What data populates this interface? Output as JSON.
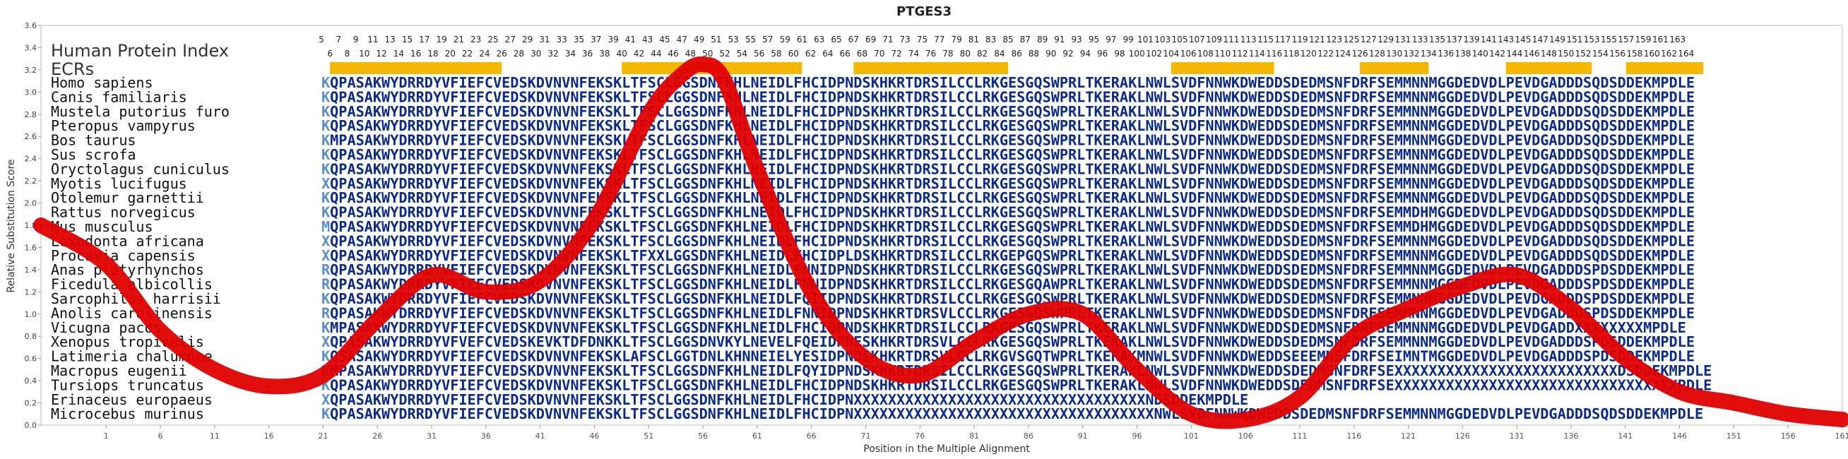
{
  "chart_data": {
    "type": "line",
    "title": "PTGES3",
    "xlabel": "Position in the Multiple Alignment",
    "ylabel": "Relative Substitution Score",
    "ylim": [
      0.0,
      3.6
    ],
    "yticks": [
      "0.0",
      "0.2",
      "0.4",
      "0.6",
      "0.8",
      "1.0",
      "1.2",
      "1.4",
      "1.6",
      "1.8",
      "2.0",
      "2.2",
      "2.4",
      "2.6",
      "2.8",
      "3.0",
      "3.2",
      "3.4",
      "3.6"
    ],
    "xlim": [
      -5,
      161
    ],
    "xticks": [
      "1",
      "6",
      "11",
      "16",
      "21",
      "26",
      "31",
      "36",
      "41",
      "46",
      "51",
      "56",
      "61",
      "66",
      "71",
      "76",
      "81",
      "86",
      "91",
      "96",
      "101",
      "106",
      "111",
      "116",
      "121",
      "126",
      "131",
      "136",
      "141",
      "146",
      "151",
      "156",
      "161"
    ],
    "index_label": "Human Protein Index",
    "ecr_label": "ECRs",
    "position_labels_odd": [
      "5",
      "7",
      "9",
      "11",
      "13",
      "15",
      "17",
      "19",
      "21",
      "23",
      "25",
      "27",
      "29",
      "31",
      "33",
      "35",
      "37",
      "39",
      "41",
      "43",
      "45",
      "47",
      "49",
      "51",
      "53",
      "55",
      "57",
      "59",
      "61",
      "63",
      "65",
      "67",
      "69",
      "71",
      "73",
      "75",
      "77",
      "79",
      "81",
      "83",
      "85",
      "87",
      "89",
      "91",
      "93",
      "95",
      "97",
      "99",
      "101",
      "103",
      "105",
      "107",
      "109",
      "111",
      "113",
      "115",
      "117",
      "119",
      "121",
      "123",
      "125",
      "127",
      "129",
      "131",
      "133",
      "135",
      "137",
      "139",
      "141",
      "143",
      "145",
      "147",
      "149",
      "151",
      "153",
      "155",
      "157",
      "159",
      "161",
      "163"
    ],
    "position_labels_even": [
      "6",
      "8",
      "10",
      "12",
      "14",
      "16",
      "18",
      "20",
      "22",
      "24",
      "26",
      "28",
      "30",
      "32",
      "34",
      "36",
      "38",
      "40",
      "42",
      "44",
      "46",
      "48",
      "50",
      "52",
      "54",
      "56",
      "58",
      "60",
      "62",
      "64",
      "66",
      "68",
      "70",
      "72",
      "74",
      "76",
      "78",
      "80",
      "82",
      "84",
      "86",
      "88",
      "90",
      "92",
      "94",
      "96",
      "98",
      "100",
      "102",
      "104",
      "106",
      "108",
      "110",
      "112",
      "114",
      "116",
      "118",
      "120",
      "122",
      "124",
      "126",
      "128",
      "130",
      "132",
      "134",
      "136",
      "138",
      "140",
      "142",
      "144",
      "146",
      "148",
      "150",
      "152",
      "154",
      "156",
      "158",
      "160",
      "162",
      "164"
    ],
    "ecr_regions": [
      [
        1,
        20
      ],
      [
        35,
        55
      ],
      [
        62,
        79
      ],
      [
        99,
        110
      ],
      [
        121,
        128
      ],
      [
        138,
        147
      ],
      [
        152,
        160
      ]
    ],
    "ecr_color": "#f5b800",
    "line_color": "#e00000",
    "species": [
      "Homo sapiens",
      "Canis familiaris",
      "Mustela putorius furo",
      "Pteropus vampyrus",
      "Bos taurus",
      "Sus scrofa",
      "Oryctolagus cuniculus",
      "Myotis lucifugus",
      "Otolemur garnettii",
      "Rattus norvegicus",
      "Mus musculus",
      "Loxodonta africana",
      "Procavia capensis",
      "Anas platyrhynchos",
      "Ficedula albicollis",
      "Sarcophilus harrisii",
      "Anolis carolinensis",
      "Vicugna pacos",
      "Xenopus tropicalis",
      "Latimeria chalumnae",
      "Macropus eugenii",
      "Tursiops truncatus",
      "Erinaceus europaeus",
      "Microcebus murinus"
    ],
    "sequences": [
      "KQPASAKWYDRRDYVFIEFCVEDSKDVNVNFEKSKLTFSCLGGSDNFKHLNEIDLFHCIDPNDSKHKRTDRSILCCLRKGESGQSWPRLTKERAKLNWLSVDFNNWKDWEDDSDEDMSNFDRFSEMMNNMGGDEDVDLPEVDGADDDSQDSDDEKMPDLE",
      "KQPASAKWYDRRDYVFIEFCVEDSKDVNVNFEKSKLTFSCLGGSDNFKHLNEIDLFHCIDPNDSKHKRTDRSILCCLRKGESGQSWPRLTKERAKLNWLSVDFNNWKDWEDDSDEDMSNFDRFSEMMNNMGGDEDVDLPEVDGADDDSQDSDDEKMPDLE",
      "KQPASAKWYDRRDYVFIEFCVEDSKDVNVNFEKSKLTFSCLGGSDNFKHLNEIDLFHCIDPNDSKHKRTDRSILCCLRKGESGQSWPRLTKERAKLNWLSVDFNNWKDWEDDSDEDMSNFDRFSEMMNNMGGDEDVDLPEVDGADDDSQDSDDEKMPDLE",
      "KQPASAKWYDRRDYVFIEFCVEDSKDVNVNFEKSKLTFSCLGGSDNFKHLNEIDLFHCIDPNDSKHKRTDRSILCCLRKGESGQSWPRLTKERAKLNWLSVDFNNWKDWEDDSDEDMSNFDRFSEMMNNMGGDEDVDLPEVDGADDDSQDSDDEKMPDLE",
      "KMPASAKWYDRRDYVFIEFCVEDSKDVNVNFEKSKLTFSCLGGSDNFKHLNEIDLFHCIDPNDSKHKRTDRSILCCLRKGESGQSWPRLTKERAKLNWLSVDFNNWKDWEDDSDEDMSNFDRFSEMMNNMGGDEDVDLPEVDGADDDSQDSDDEKMPDLE",
      "KQPASAKWYDRRDYVFIEFCVEDSKDVNVNFEKSKLTFSCLGGSDNFKHLNEIDLFHCIDPNDSKHKRTDRSILCCLRKGESGQSWPRLTKERAKLNWLSVDFNNWKDWEDDSDEDMSNFDRFSEMMNNMGGDEDVDLPEVDGADDDSQDSDDEKMPDLE",
      "KQPASAKWYDRRDYVFIEFCVEDSKDVNVNFEKSKLTFSCLGGSDNFKHLNEIDLFHCIDPNDSKHKRTDRSILCCLRKGESGQSWPRLTKERAKLNWLSVDFNNWKDWEDDSDEDMSNFDRFSEMMNNMGGDEDVDLPEVDGADDDSQDSDDEKMPDLE",
      "XQPASAKWYDRRDYVFIEFCVEDSKDVNVNFEKSKLTFSCLGGSDNFKHLNEIDLFHCIDPNDSKHKRTDRSILCCLRKGESGQSWPRLTKERAKLNWLSVDFNNWKDWEDDSDEDMSNFDRFSEMMNNMGGDEDVDLPEVDGADDDSQDSDDEKMPDLE",
      "KQPASAKWYDRRDYVFIEFCVEDSKDVNVNFEKSKLTFSCLGGSDNFKHLNEIDLFHCIDPNDSKHKRTDRSILCCLRKGESGQSWPRLTKERAKLNWLSVDFNNWKDWEDDSDEDMSNFDRFSEMMNNMGGDEDVDLPEVDGADDDSQDSDDEKMPDLE",
      "KQPASAKWYDRRDYVFIEFCVEDSKDVNVNFEKSKLTFSCLGGSDNFKHLNEIDLFHCIDPNDSKHKRTDRSILCCLRKGESGQSWPRLTKERAKLNWLSVDFNNWKDWEDDSDEDMSNFDRFSEMMDHMGGDEDVDLPEVDGADDDSQDSDDEKMPDLE",
      "MQPASAKWYDRRDYVFIEFCVEDSKDVNVNFEKSKLTFSCLGGSDNFKHLNEIDLFHCIDPNDSKHKRTDRSILCCLRKGESGQSWPRLTKERAKLNWLSVDFNNWKDWEDDSDEDMSNFDRFSEMMDHMGGDEDVDLPEVDGADDDSQDSDDEKMPDLE",
      "XQPASAKWYDRRDYVFIEFCVEDSKDVNVNFEKSKLTFSCLGGSDNFKHLNEIDLFHCIDPNDSKHKRTDRSILCCLRKGESGQSWPRLTKERAKLNWLSVDFNNWKDWEDDSDEDMSNFDRFSEMMNNMGGDEDVDLPEVDGADDDSQDSDDEKMPDLE",
      "XQPASAKWYDRRDYVFIEFCVEDSKDVNVNFEKSKLTFXXLGGSDNFKHLNEIDLFHCIDPLDSKHKRTDRSILCCLRKGEPGQSWPRLTKERAKLNWLSVDFNNWKDWEDDSDEDMSNFDRFSEMMNNMGGDEDVDLPEVDGADDDSQDSDDEKMPDLE",
      "RQPASAKWYDRRDYVFIEFCVEDSKDVNVNFEKSKLTFSCLGGSDNFKHLNEIDLFNNIDPNDSKHKRTDRSILCCLRKGESGQSWPRLTKERAKLNWLSVDFNNWKDWEDDSDEDMSNFDRFSEMMNNMGGDEDVDLPEVDGADDDSPDSDDEKMPDLE",
      "RQPASAKWYDRRDYVFIEFCVEDSKDVNVNFEKSKLTFSCLGGSDNFKHLNEIDLFNNIDPNDSKHKRTDRSILCCLRKGESGQAWPRLTKERAKLNWLSVDFNNWKDWEDDSDEDMSNFDRFSEMMNNMGGDEDVDLPEVDGADDDSPDSDDEKMPDLE",
      "KQPASAKWYDRRDYVFIEFCVEDSKDVNVNFEKSKLTFSCLGGSDNFKHLNEIDLFQIIDPNDSKHKRTDRSILCCLRKGESGQSWPRLTKERAKLNWLSVDFNNWKDWEDDSDEDMSNFDRFSEMMNNMGGDEDVDLPEVDGADDDSPDSDDEKMPDLE",
      "RQPASAKWYDRRDYVFIEFCVEDSKDVNVNFEKSKLTFSCLGGSDNFKHLNEIDLFNNIDPNDSKHKRTDRSVLCCLRKGESGQSWPRLTKERAKLNWLSVDFNNWKDWEDDSDEDMSNFDRFSEMMNNMGGDEDVDLPEVDGADDDSPDSDDEKMPDLE",
      "KMPASAKWYDRRDYVFIEFCVEDSKDVNVNFEKSKLTFSCLGGSDNFKHLNEIDLFHCIDPNDSKHKRTDRSILCCLRKGESGQSWPRLTKERAKLNWLSVDFNNWKDWEDDSDEDMSNFDRFSEMMNNMGGDEDVDLPEVDGADDXXXXXXXXMPDLE",
      "XQPASAKWYDRRDYVFVEFCVEDSKEVKTDFDNKKLTFSCLGGSDNVKYLNEVELFQEIDPNESKHKRTDRSVLCCLRKGESGQSWPRLTKEKAKLNWLSVDFNNWKDWEDDSDEDMSNFDRFSEMMNNMGGDEDVDLPEVDGADDDSPDSDDEKMPDLE",
      "KQSASAKWYDRRDYVFIEFCVEDSKDVNVNFEKSKLAFSCLGGTDNLKHNNEIELYESIDPNDSKHKRTDRSVLCCLRKGVSGQTWPRLTKERAKMNWLSVDFNNWKDWEDDSEEEMNSFDRFSEIMNTMGGDEDVDLPEVDGADDDSPDSDDEKMPDLE",
      "KMPASAKWYDRRDYVFIEFCVEDSKDVNVNFEKSKLTFSCLGGSDNFKHLNEIDLFQYIDPNDSKHKRTDRSILCCLRKGESGQSWPRLTKERAKLNWLSVDFNNWKDWEDDSDEDMSNFDRFSEXXXXXXXXXXXXXXXXXXXXXXXXXXDSDDEKMPDLE",
      "KQPASAKWYDRRDYVFIEFCVEDSKDVNVNFEKSKLTFSCLGGSDNFKHLNEIDLFHCIDPNDSKHKRTDRSILCCLRKGESGQSWPRLTKERAKLNWLSVDFNNWKDWEDDSDEDMSNFDRFSEXXXXXXXXXXXXXXXXXXXXXXXXXXXXXXXXXPDLE",
      "XQPASAKWYDRRDYVFIEFCVEDSKDVNVNFEKSKLTFSCLGGSDNFKHLNEIDLFHCIDPNXXXXXXXXXXXXXXXXXXXXXXXXXXXXXXXXXXNDSDDEKMPDLE",
      "KQPASAKWYDRRDYVFIEFCVEDSKDVNVNFEKSKLTFSCLGGSDNFKHLNEIDLFHCIDPNXXXXXXXXXXXXXXXXXXXXXXXXXXXXXXXXXXXNWLSVDFNNWKDWEDDSDEDMSNFDRFSEMMNNMGGDEDVDLPEVDGADDDSQDSDDEKMPDLE"
    ],
    "line_x": [
      -5,
      1,
      6,
      11,
      16,
      21,
      26,
      31,
      36,
      41,
      46,
      51,
      54,
      56,
      58,
      61,
      66,
      71,
      76,
      81,
      86,
      91,
      96,
      101,
      106,
      111,
      116,
      121,
      126,
      131,
      136,
      141,
      146,
      151,
      156,
      161
    ],
    "line_y": [
      1.8,
      1.45,
      0.85,
      0.5,
      0.35,
      0.45,
      0.95,
      1.35,
      1.2,
      1.3,
      1.85,
      2.8,
      3.15,
      3.25,
      3.1,
      2.3,
      1.2,
      0.6,
      0.45,
      0.75,
      1.0,
      1.0,
      0.5,
      0.1,
      0.05,
      0.25,
      0.8,
      1.05,
      1.25,
      1.35,
      1.05,
      0.6,
      0.3,
      0.2,
      0.1,
      0.05
    ]
  }
}
